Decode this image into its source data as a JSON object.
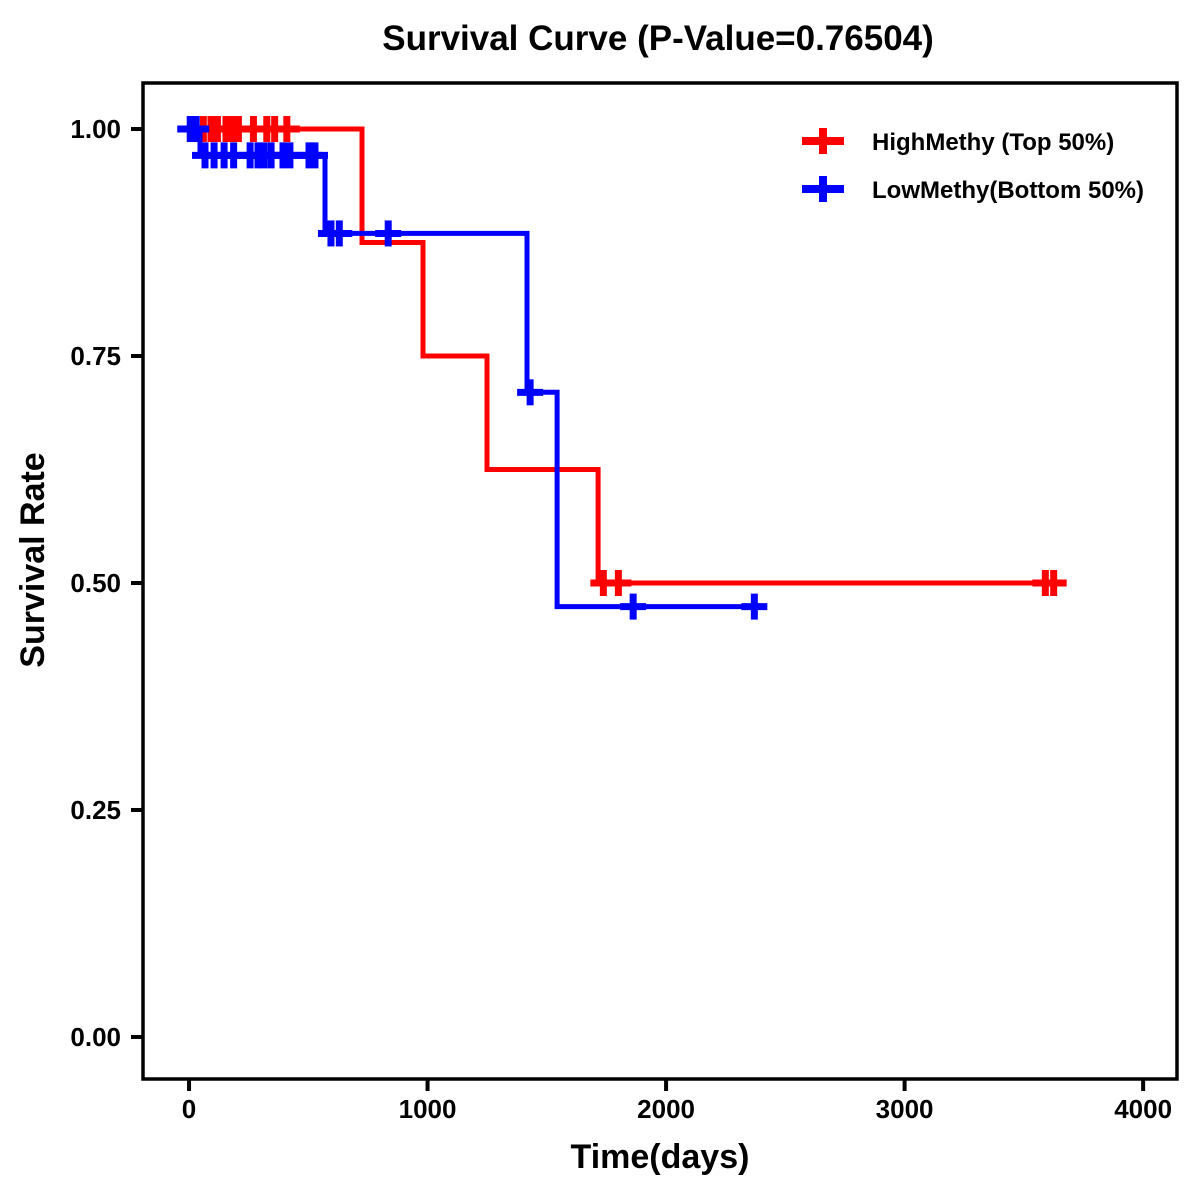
{
  "figure": {
    "background": "#ffffff",
    "text_color": "#000000"
  },
  "chart_data": {
    "type": "line",
    "subtype": "kaplan-meier-step-curve",
    "title": "Survival Curve (P-Value=0.76504)",
    "p_value": "0.76504",
    "xlabel": "Time(days)",
    "ylabel": "Survival Rate",
    "xlim": [
      -193,
      4142
    ],
    "ylim": [
      -0.0463,
      1.0507
    ],
    "grid": false,
    "legend_position": "upper-right-inside",
    "x_ticks": [
      {
        "value": 0,
        "label": "0"
      },
      {
        "value": 1000,
        "label": "1000"
      },
      {
        "value": 2000,
        "label": "2000"
      },
      {
        "value": 3000,
        "label": "3000"
      },
      {
        "value": 4000,
        "label": "4000"
      }
    ],
    "y_ticks": [
      {
        "value": 1.0,
        "label": "1.00"
      },
      {
        "value": 0.75,
        "label": "0.75"
      },
      {
        "value": 0.5,
        "label": "0.50"
      },
      {
        "value": 0.25,
        "label": "0.25"
      },
      {
        "value": 0.0,
        "label": "0.00"
      }
    ],
    "series": [
      {
        "name": "HighMethy (Top 50%)",
        "id": "highmethy",
        "color": "#ff0000",
        "marker": "plus",
        "steps": [
          [
            0,
            1.0
          ],
          [
            725,
            1.0
          ],
          [
            725,
            0.875
          ],
          [
            981,
            0.875
          ],
          [
            981,
            0.75
          ],
          [
            1249,
            0.75
          ],
          [
            1249,
            0.625
          ],
          [
            1715,
            0.625
          ],
          [
            1715,
            0.5
          ],
          [
            3673,
            0.5
          ]
        ],
        "censor_marks": [
          [
            60,
            1.0
          ],
          [
            92,
            1.0
          ],
          [
            119,
            1.0
          ],
          [
            155,
            1.0
          ],
          [
            180,
            1.0
          ],
          [
            207,
            1.0
          ],
          [
            270,
            1.0
          ],
          [
            326,
            1.0
          ],
          [
            359,
            1.0
          ],
          [
            410,
            1.0
          ],
          [
            1737,
            0.5
          ],
          [
            1800,
            0.5
          ],
          [
            3590,
            0.5
          ],
          [
            3625,
            0.5
          ]
        ]
      },
      {
        "name": "LowMethy(Bottom 50%)",
        "id": "lowmethy",
        "color": "#0000ff",
        "marker": "plus",
        "steps": [
          [
            0,
            1.0
          ],
          [
            46,
            1.0
          ],
          [
            46,
            0.971
          ],
          [
            570,
            0.971
          ],
          [
            570,
            0.885
          ],
          [
            1417,
            0.885
          ],
          [
            1417,
            0.71
          ],
          [
            1543,
            0.71
          ],
          [
            1543,
            0.474
          ],
          [
            2415,
            0.474
          ]
        ],
        "censor_marks": [
          [
            5,
            1.0
          ],
          [
            30,
            1.0
          ],
          [
            67,
            0.971
          ],
          [
            105,
            0.971
          ],
          [
            147,
            0.971
          ],
          [
            187,
            0.971
          ],
          [
            256,
            0.971
          ],
          [
            289,
            0.971
          ],
          [
            314,
            0.971
          ],
          [
            344,
            0.971
          ],
          [
            394,
            0.971
          ],
          [
            423,
            0.971
          ],
          [
            503,
            0.971
          ],
          [
            528,
            0.971
          ],
          [
            595,
            0.885
          ],
          [
            630,
            0.885
          ],
          [
            835,
            0.885
          ],
          [
            1430,
            0.71
          ],
          [
            1862,
            0.474
          ],
          [
            2370,
            0.474
          ]
        ]
      }
    ]
  },
  "legend": {
    "entries": [
      {
        "label": "HighMethy (Top 50%)",
        "color": "#ff0000"
      },
      {
        "label": "LowMethy(Bottom 50%)",
        "color": "#0000ff"
      }
    ]
  }
}
